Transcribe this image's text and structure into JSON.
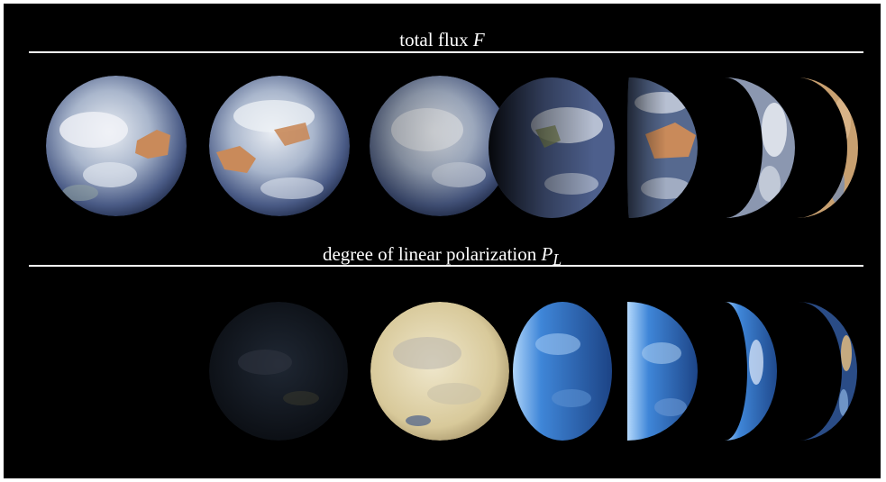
{
  "figure": {
    "flux_section": {
      "label": "total flux",
      "symbol": "F"
    },
    "polarization_section": {
      "label": "degree of linear polarization",
      "symbol": "P",
      "symbol_subscript": "L"
    }
  },
  "colors": {
    "background": "#000000",
    "text": "#ffffff",
    "rule": "#ffffff",
    "flux_ocean": "#3c4f7a",
    "flux_cloud": "#e8ecf2",
    "flux_land": "#c98a5a",
    "pol_dark": "#141a22",
    "pol_cream": "#e6dcb8",
    "pol_blue": "#2a6fc8"
  }
}
